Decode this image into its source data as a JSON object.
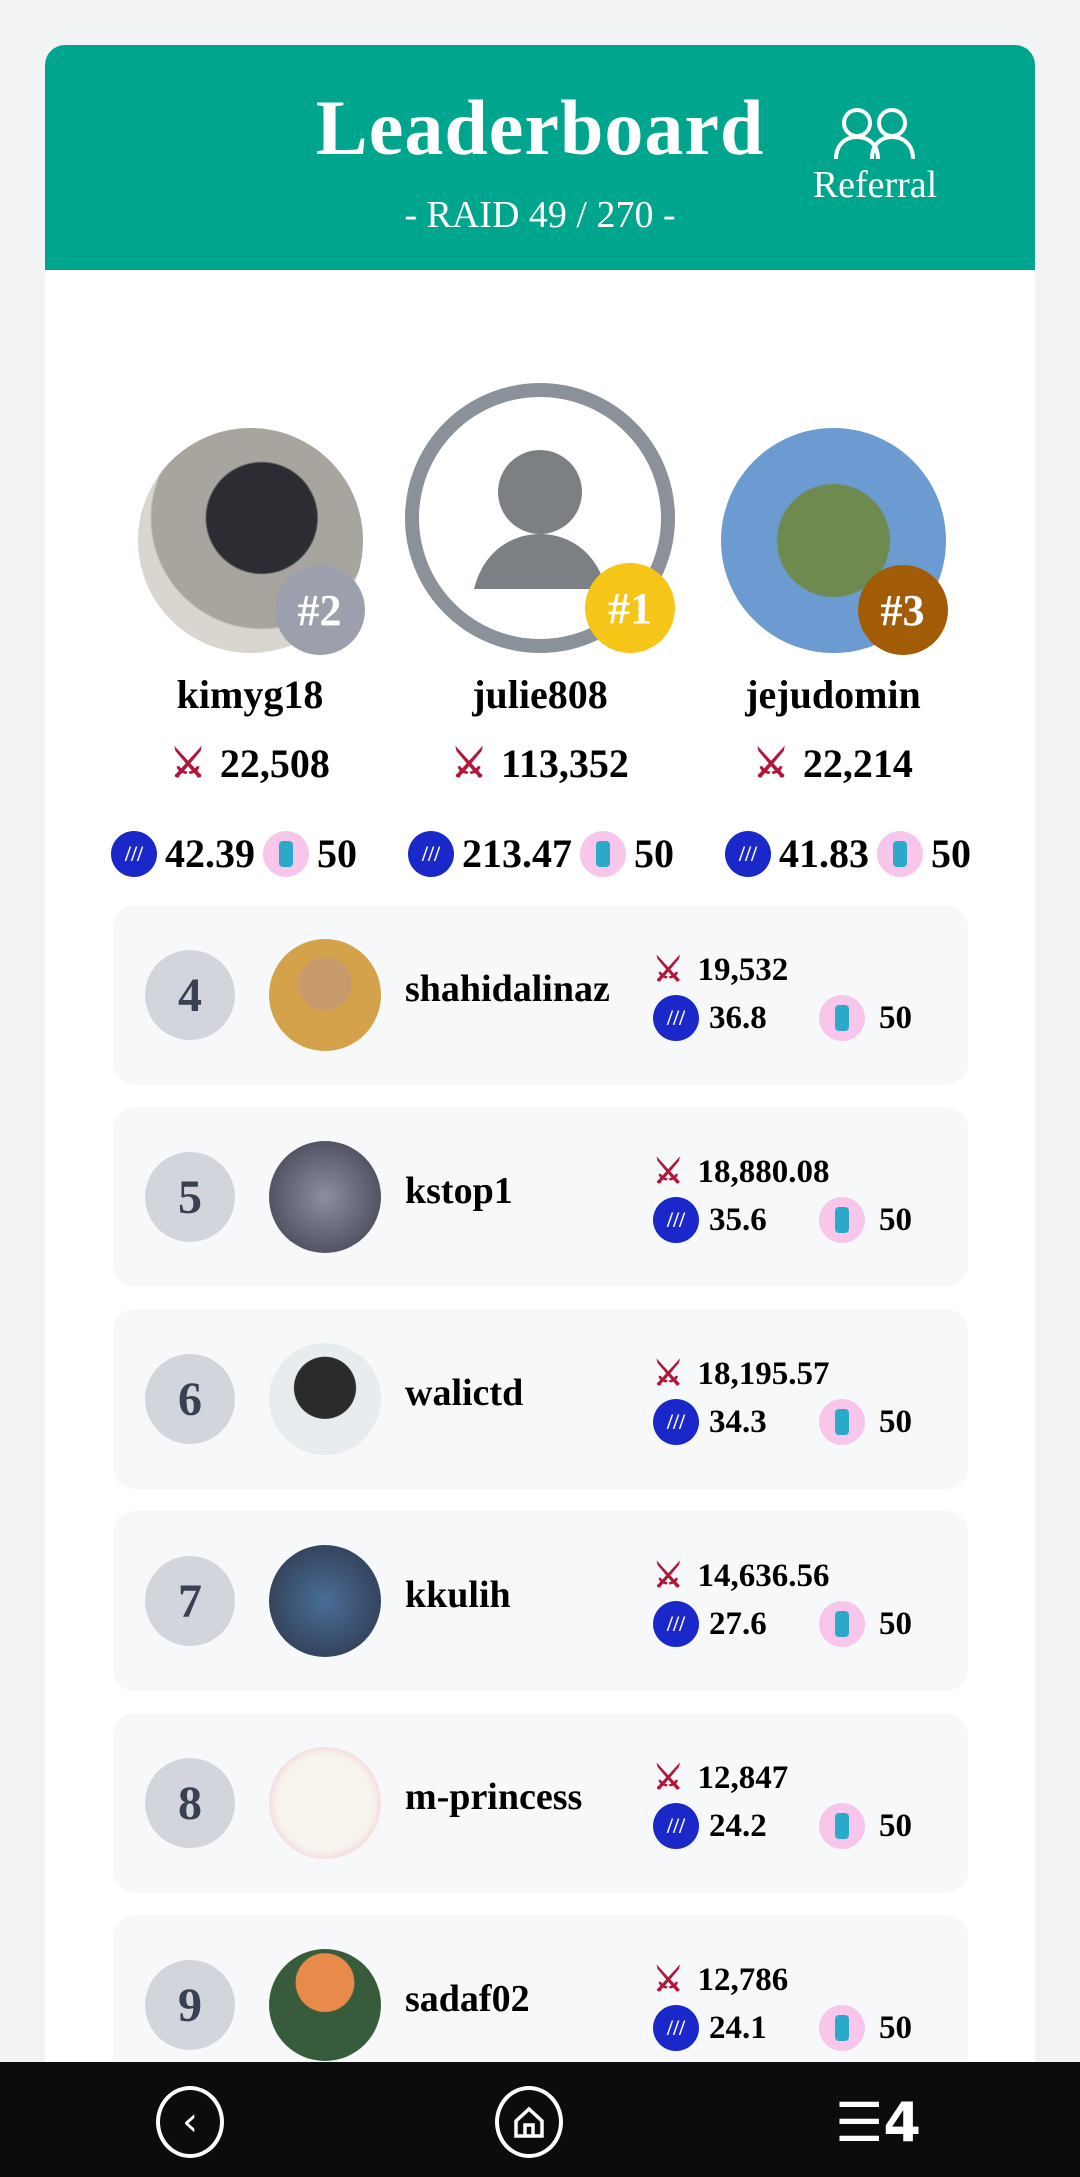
{
  "header": {
    "title": "Leaderboard",
    "subtitle": "- RAID 49 / 270 -",
    "referral_label": "Referral",
    "color": "#00a58e"
  },
  "podium": [
    {
      "rank_label": "#2",
      "name": "kimyg18",
      "score": "22,508",
      "steem": "42.39",
      "pets": "50",
      "badge_color": "#9ca0ad"
    },
    {
      "rank_label": "#1",
      "name": "julie808",
      "score": "113,352",
      "steem": "213.47",
      "pets": "50",
      "badge_color": "#f5c518"
    },
    {
      "rank_label": "#3",
      "name": "jejudomin",
      "score": "22,214",
      "steem": "41.83",
      "pets": "50",
      "badge_color": "#a35c06"
    }
  ],
  "rows": [
    {
      "rank": "4",
      "name": "shahidalinaz",
      "score": "19,532",
      "steem": "36.8",
      "pets": "50"
    },
    {
      "rank": "5",
      "name": "kstop1",
      "score": "18,880.08",
      "steem": "35.6",
      "pets": "50"
    },
    {
      "rank": "6",
      "name": "walictd",
      "score": "18,195.57",
      "steem": "34.3",
      "pets": "50"
    },
    {
      "rank": "7",
      "name": "kkulih",
      "score": "14,636.56",
      "steem": "27.6",
      "pets": "50"
    },
    {
      "rank": "8",
      "name": "m-princess",
      "score": "12,847",
      "steem": "24.2",
      "pets": "50"
    },
    {
      "rank": "9",
      "name": "sadaf02",
      "score": "12,786",
      "steem": "24.1",
      "pets": "50"
    }
  ],
  "nav": {
    "back_icon": "chevron-left-icon",
    "home_icon": "home-icon",
    "app_icon": "ladder-4-icon",
    "app_label": "4"
  }
}
